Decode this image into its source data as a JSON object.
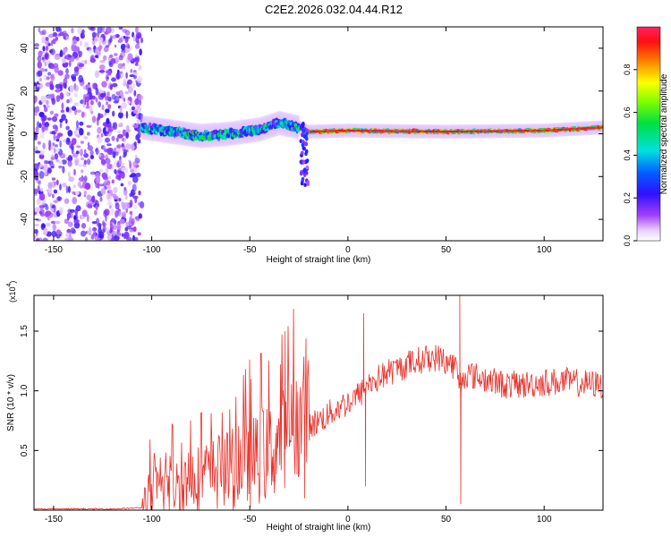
{
  "figure_title": "C2E2.2026.032.04.44.R12",
  "colors": {
    "snr_line": "#e8312a",
    "axis": "#000000",
    "background": "#ffffff",
    "spectrogram_band_core": "#ff2040",
    "spectrogram_noise": "#8a2be2"
  },
  "chart_data": [
    {
      "type": "heatmap",
      "title": "C2E2.2026.032.04.44.R12",
      "xlabel": "Height of straight line (km)",
      "ylabel": "Frequency (Hz)",
      "xlim": [
        -160,
        130
      ],
      "ylim": [
        -50,
        50
      ],
      "x_ticks": [
        -150,
        -100,
        -50,
        0,
        50,
        100
      ],
      "x_tick_labels": [
        "-150",
        "-100",
        "-50",
        "0",
        "50",
        "100"
      ],
      "y_ticks": [
        -40,
        -20,
        0,
        20,
        40
      ],
      "y_tick_labels": [
        "-40",
        "-20",
        "0",
        "20",
        "40"
      ],
      "colorbar": {
        "label": "Normalized spectral amplitude",
        "range": [
          0.0,
          1.0
        ],
        "ticks": [
          0.0,
          0.2,
          0.4,
          0.6,
          0.8
        ],
        "tick_labels": [
          "0.0",
          "0.2",
          "0.4",
          "0.6",
          "0.8"
        ],
        "colormap": "rainbow (white-violet-blue-cyan-green-yellow-red-magenta)"
      },
      "regions": [
        {
          "x_range": [
            -160,
            -105
          ],
          "description": "broadband noise across all frequencies",
          "amplitude": 0.15
        },
        {
          "x_range": [
            -105,
            -25
          ],
          "description": "signal band near 0 Hz, frequency wanders -2 to +6 Hz",
          "amplitude": 0.5
        },
        {
          "x_range": [
            -25,
            130
          ],
          "description": "narrow strong band near 1-3 Hz",
          "amplitude": 0.9
        }
      ],
      "band_center": [
        {
          "x": -105,
          "y": 3
        },
        {
          "x": -90,
          "y": 1
        },
        {
          "x": -75,
          "y": -1
        },
        {
          "x": -60,
          "y": 0
        },
        {
          "x": -45,
          "y": 2
        },
        {
          "x": -35,
          "y": 5
        },
        {
          "x": -25,
          "y": 3
        },
        {
          "x": -20,
          "y": 1
        },
        {
          "x": 0,
          "y": 1.5
        },
        {
          "x": 50,
          "y": 1
        },
        {
          "x": 100,
          "y": 1.5
        },
        {
          "x": 130,
          "y": 3
        }
      ],
      "feature_tail": {
        "x": -22,
        "y_range": [
          -25,
          5
        ]
      }
    },
    {
      "type": "line",
      "title": "",
      "xlabel": "Height of straight line (km)",
      "ylabel": "SNR (10 * v/v)",
      "y_multiplier_label": "(x10",
      "y_multiplier_exp": "4",
      "y_multiplier_close": ")",
      "xlim": [
        -160,
        130
      ],
      "ylim": [
        0,
        1.8
      ],
      "x_ticks": [
        -150,
        -100,
        -50,
        0,
        50,
        100
      ],
      "x_tick_labels": [
        "-150",
        "-100",
        "-50",
        "0",
        "50",
        "100"
      ],
      "y_ticks": [
        0.5,
        1.0,
        1.5
      ],
      "y_tick_labels": [
        "0.5",
        "1.0",
        "1.5"
      ],
      "series": [
        {
          "name": "",
          "x": [
            -160,
            -140,
            -120,
            -105,
            -100,
            -90,
            -80,
            -70,
            -60,
            -50,
            -40,
            -35,
            -30,
            -25,
            -20,
            -15,
            -10,
            -5,
            0,
            5,
            8,
            10,
            15,
            20,
            25,
            30,
            35,
            40,
            45,
            50,
            55,
            57,
            60,
            65,
            70,
            80,
            90,
            100,
            110,
            120,
            130
          ],
          "y": [
            0.01,
            0.01,
            0.01,
            0.02,
            0.06,
            0.12,
            0.18,
            0.22,
            0.25,
            0.3,
            0.38,
            0.45,
            0.55,
            0.62,
            0.7,
            0.75,
            0.8,
            0.86,
            0.9,
            0.96,
            1.0,
            1.05,
            1.1,
            1.15,
            1.18,
            1.22,
            1.25,
            1.27,
            1.28,
            1.25,
            1.2,
            1.05,
            1.15,
            1.12,
            1.1,
            1.05,
            1.05,
            1.07,
            1.08,
            1.06,
            1.05
          ]
        }
      ],
      "spikes": [
        {
          "x": -32,
          "y": 1.5
        },
        {
          "x": 8,
          "y": 1.65
        },
        {
          "x": 57,
          "y": 1.85
        },
        {
          "x": 57.5,
          "y": 0.05
        },
        {
          "x": 9,
          "y": 0.2
        },
        {
          "x": -22,
          "y": 0.1
        }
      ]
    }
  ]
}
